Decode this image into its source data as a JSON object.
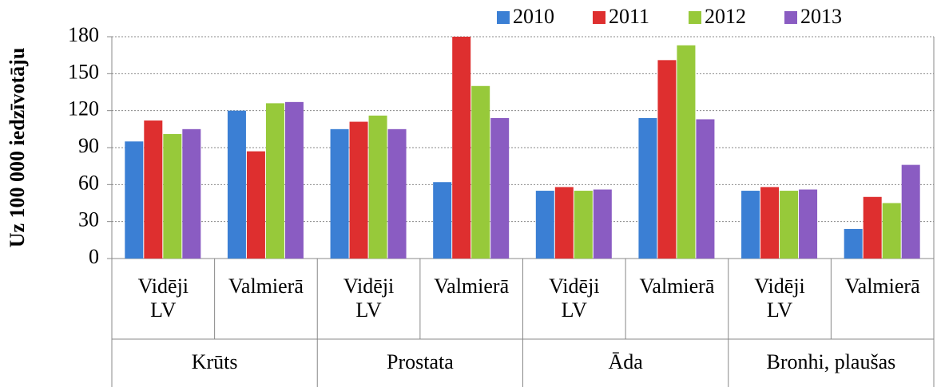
{
  "chart_data": {
    "type": "bar",
    "y_label": "Uz 100 000 iedzīvotāju",
    "categories": [
      "Vidēji LV",
      "Valmierā",
      "Vidēji LV",
      "Valmierā",
      "Vidēji LV",
      "Valmierā",
      "Vidēji LV",
      "Valmierā"
    ],
    "groups": [
      "Krūts",
      "Prostata",
      "Āda",
      "Bronhi, plaušas"
    ],
    "series": [
      {
        "name": "2010",
        "color": "#3b7fd4",
        "values": [
          95,
          120,
          105,
          62,
          55,
          114,
          55,
          24
        ]
      },
      {
        "name": "2011",
        "color": "#de2f2f",
        "values": [
          112,
          87,
          111,
          180,
          58,
          161,
          58,
          50
        ]
      },
      {
        "name": "2012",
        "color": "#97c93a",
        "values": [
          101,
          126,
          116,
          140,
          55,
          173,
          55,
          45
        ]
      },
      {
        "name": "2013",
        "color": "#8a5cc2",
        "values": [
          105,
          127,
          105,
          114,
          56,
          113,
          56,
          76
        ]
      }
    ],
    "ylim": [
      0,
      180
    ],
    "yticks": [
      0,
      30,
      60,
      90,
      120,
      150,
      180
    ],
    "grid": true
  }
}
